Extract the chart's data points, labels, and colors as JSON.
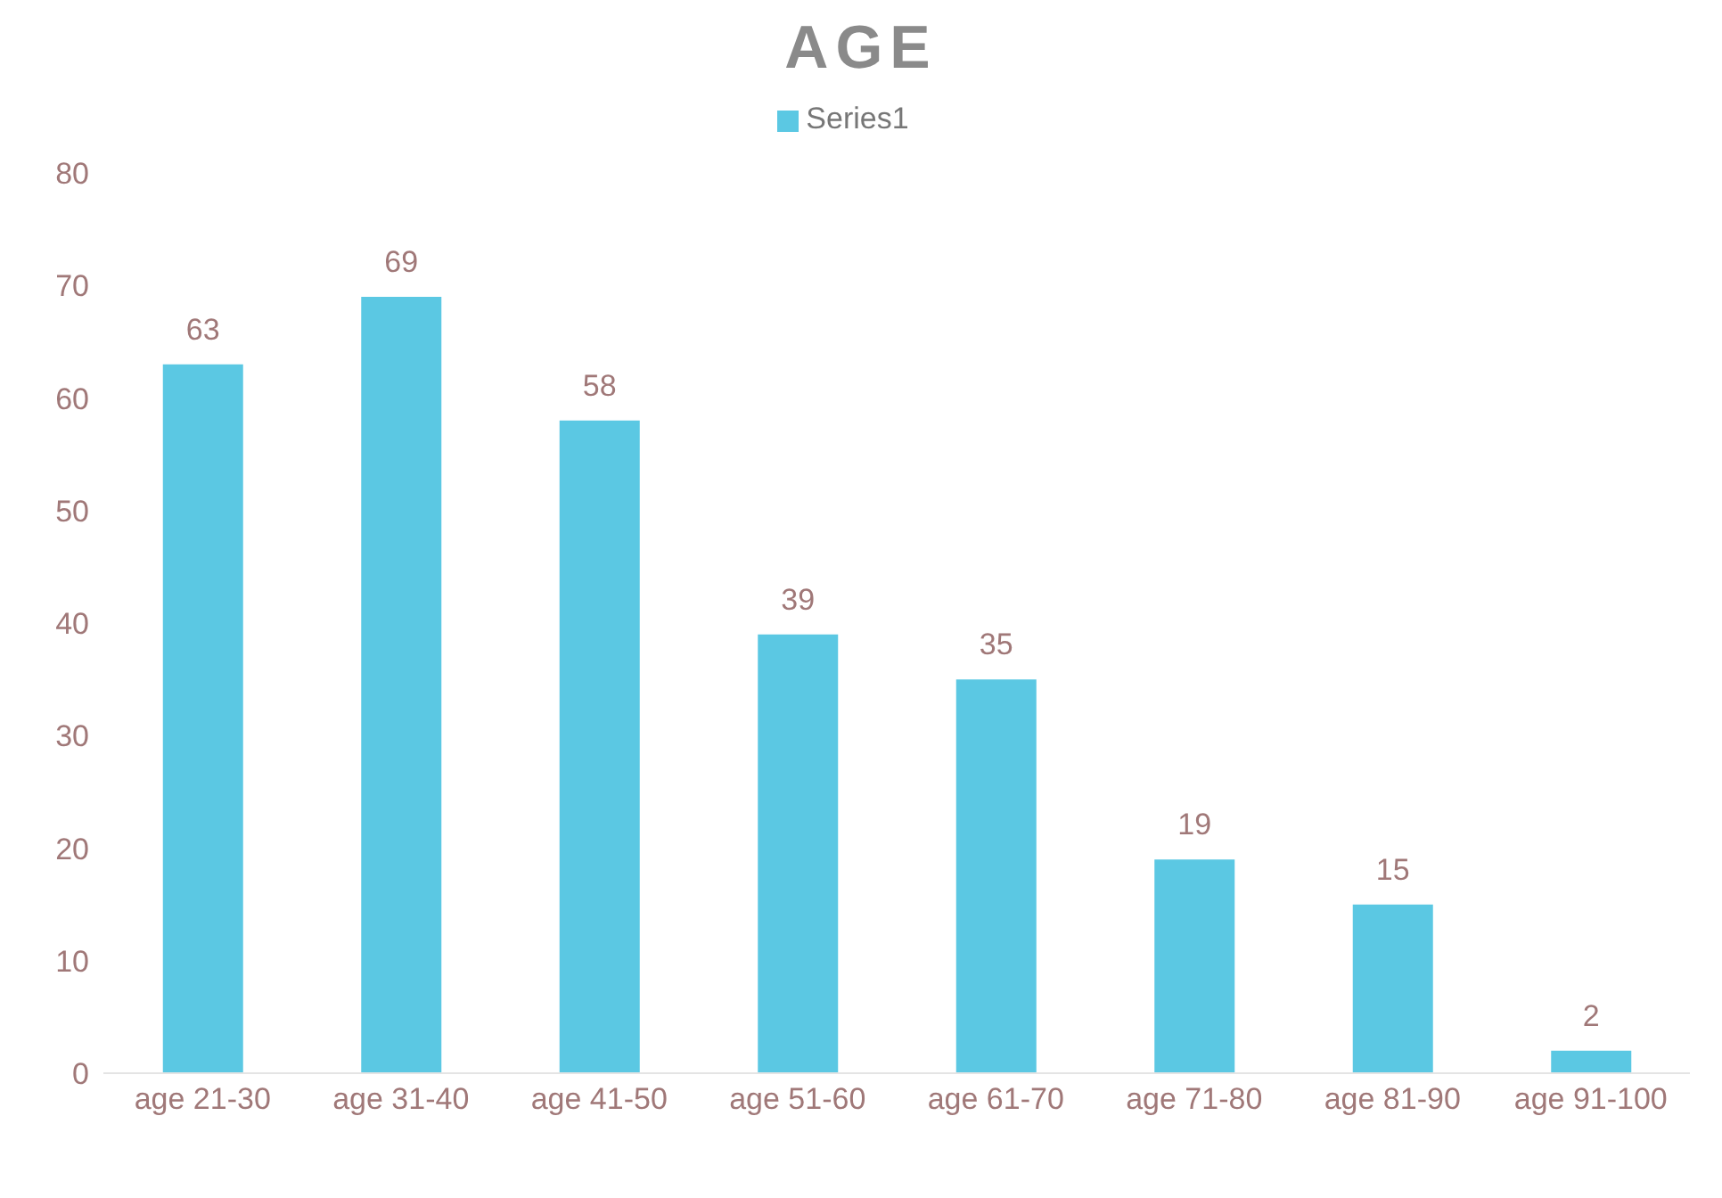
{
  "chart_data": {
    "type": "bar",
    "title": "AGE",
    "categories": [
      "age 21-30",
      "age 31-40",
      "age 41-50",
      "age 51-60",
      "age 61-70",
      "age 71-80",
      "age 81-90",
      "age 91-100"
    ],
    "series": [
      {
        "name": "Series1",
        "color": "#5bc8e3",
        "values": [
          63,
          69,
          58,
          39,
          35,
          19,
          15,
          2
        ]
      }
    ],
    "ylim": [
      0,
      80
    ],
    "yticks": [
      0,
      10,
      20,
      30,
      40,
      50,
      60,
      70,
      80
    ],
    "legend": "top",
    "data_labels": true
  }
}
